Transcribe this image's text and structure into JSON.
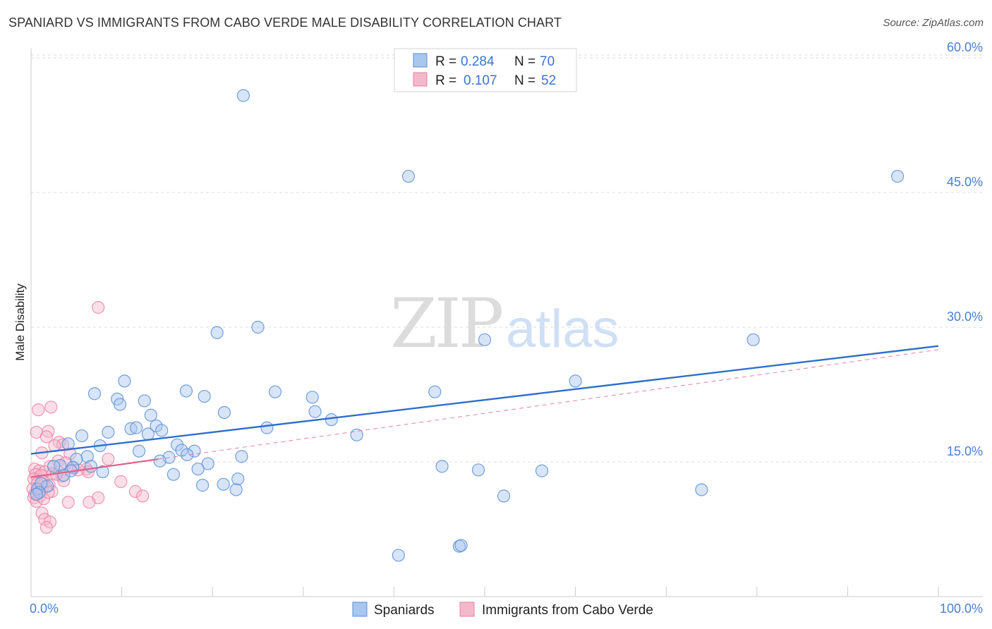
{
  "title": "SPANIARD VS IMMIGRANTS FROM CABO VERDE MALE DISABILITY CORRELATION CHART",
  "source": "Source: ZipAtlas.com",
  "watermark": {
    "zip": "ZIP",
    "atlas": "atlas"
  },
  "colors": {
    "blue_fill": "#a9c6ef",
    "blue_stroke": "#5b8fd6",
    "blue_line": "#2f6fcc",
    "pink_fill": "#f5b8cb",
    "pink_stroke": "#e87fa0",
    "pink_line": "#e0608a",
    "tick_text": "#4a7fd0",
    "grid": "#dddddd"
  },
  "legend_top": {
    "rows": [
      {
        "r_label": "R =",
        "r_value": "0.284",
        "n_label": "N =",
        "n_value": "70"
      },
      {
        "r_label": "R =",
        "r_value": "0.107",
        "n_label": "N =",
        "n_value": "52"
      }
    ]
  },
  "legend_bottom": [
    "Spaniards",
    "Immigrants from Cabo Verde"
  ],
  "chart_data": {
    "type": "scatter",
    "title": "SPANIARD VS IMMIGRANTS FROM CABO VERDE MALE DISABILITY CORRELATION CHART",
    "ylabel": "Male Disability",
    "xlabel": "",
    "xlim": [
      0,
      100
    ],
    "ylim": [
      0,
      64
    ],
    "x_tick_labels": [
      "0.0%",
      "100.0%"
    ],
    "y_ticks": [
      15,
      30,
      45,
      60
    ],
    "y_tick_labels": [
      "15.0%",
      "30.0%",
      "45.0%",
      "60.0%"
    ],
    "grid": "horizontal dashed",
    "legend_placement": "top-center",
    "series": [
      {
        "name": "Spaniards",
        "r": 0.284,
        "n": 70,
        "trend": {
          "x": [
            0,
            100
          ],
          "y": [
            15.9,
            27.9
          ]
        },
        "points": [
          [
            23.4,
            55.8
          ],
          [
            41.6,
            46.8
          ],
          [
            95.5,
            46.8
          ],
          [
            25.0,
            30.0
          ],
          [
            20.5,
            29.4
          ],
          [
            50.0,
            28.6
          ],
          [
            79.6,
            28.6
          ],
          [
            10.3,
            24.0
          ],
          [
            60.0,
            24.0
          ],
          [
            7.0,
            22.6
          ],
          [
            17.1,
            22.9
          ],
          [
            19.1,
            22.3
          ],
          [
            26.9,
            22.8
          ],
          [
            31.0,
            22.2
          ],
          [
            44.5,
            22.8
          ],
          [
            9.5,
            22.0
          ],
          [
            12.5,
            21.8
          ],
          [
            9.8,
            21.4
          ],
          [
            21.3,
            20.5
          ],
          [
            13.2,
            20.2
          ],
          [
            31.3,
            20.6
          ],
          [
            33.1,
            19.7
          ],
          [
            13.8,
            19.0
          ],
          [
            11.0,
            18.7
          ],
          [
            11.6,
            18.8
          ],
          [
            8.5,
            18.3
          ],
          [
            14.4,
            18.5
          ],
          [
            26.0,
            18.8
          ],
          [
            35.9,
            18.0
          ],
          [
            12.9,
            18.1
          ],
          [
            5.6,
            17.9
          ],
          [
            4.1,
            17.0
          ],
          [
            7.6,
            16.8
          ],
          [
            16.1,
            16.9
          ],
          [
            16.6,
            16.3
          ],
          [
            18.0,
            16.2
          ],
          [
            11.9,
            16.2
          ],
          [
            17.2,
            15.8
          ],
          [
            23.2,
            15.6
          ],
          [
            15.2,
            15.5
          ],
          [
            14.2,
            15.1
          ],
          [
            6.2,
            15.6
          ],
          [
            5.0,
            15.3
          ],
          [
            3.2,
            14.6
          ],
          [
            4.6,
            14.4
          ],
          [
            2.5,
            14.5
          ],
          [
            6.6,
            14.5
          ],
          [
            19.5,
            14.8
          ],
          [
            15.7,
            13.6
          ],
          [
            7.9,
            13.9
          ],
          [
            4.4,
            14.0
          ],
          [
            18.4,
            14.2
          ],
          [
            45.3,
            14.5
          ],
          [
            49.3,
            14.1
          ],
          [
            56.3,
            14.0
          ],
          [
            3.6,
            13.5
          ],
          [
            22.8,
            13.1
          ],
          [
            0.7,
            12.0
          ],
          [
            1.8,
            12.3
          ],
          [
            1.1,
            12.6
          ],
          [
            0.9,
            11.6
          ],
          [
            0.6,
            11.4
          ],
          [
            18.9,
            12.4
          ],
          [
            21.2,
            12.5
          ],
          [
            22.6,
            11.9
          ],
          [
            73.9,
            11.9
          ],
          [
            52.1,
            11.2
          ],
          [
            40.5,
            4.6
          ],
          [
            47.2,
            5.6
          ],
          [
            47.4,
            5.7
          ]
        ]
      },
      {
        "name": "Immigrants from Cabo Verde",
        "r": 0.107,
        "n": 52,
        "trend": {
          "x": [
            0,
            14
          ],
          "y": [
            13.3,
            15.3
          ]
        },
        "trend_extended": {
          "x": [
            14,
            100
          ],
          "y": [
            15.3,
            27.5
          ]
        },
        "points": [
          [
            7.4,
            32.2
          ],
          [
            0.8,
            20.8
          ],
          [
            2.2,
            21.1
          ],
          [
            0.6,
            18.3
          ],
          [
            1.9,
            18.4
          ],
          [
            1.7,
            17.8
          ],
          [
            3.1,
            17.2
          ],
          [
            3.5,
            16.9
          ],
          [
            2.6,
            16.8
          ],
          [
            1.2,
            16.0
          ],
          [
            4.3,
            15.9
          ],
          [
            8.5,
            15.3
          ],
          [
            3.0,
            15.1
          ],
          [
            3.8,
            14.9
          ],
          [
            4.7,
            14.3
          ],
          [
            2.1,
            14.5
          ],
          [
            0.4,
            14.2
          ],
          [
            0.9,
            14.0
          ],
          [
            1.5,
            13.9
          ],
          [
            2.4,
            13.7
          ],
          [
            0.5,
            13.6
          ],
          [
            1.1,
            13.5
          ],
          [
            3.4,
            13.4
          ],
          [
            6.1,
            14.2
          ],
          [
            6.3,
            13.9
          ],
          [
            0.3,
            13.1
          ],
          [
            1.3,
            12.8
          ],
          [
            0.7,
            12.6
          ],
          [
            2.0,
            12.4
          ],
          [
            3.6,
            12.9
          ],
          [
            0.2,
            12.0
          ],
          [
            0.8,
            11.9
          ],
          [
            1.6,
            12.2
          ],
          [
            2.3,
            11.7
          ],
          [
            0.4,
            11.4
          ],
          [
            1.0,
            11.2
          ],
          [
            0.3,
            11.0
          ],
          [
            0.6,
            10.6
          ],
          [
            1.4,
            10.9
          ],
          [
            9.9,
            12.8
          ],
          [
            11.5,
            11.7
          ],
          [
            12.3,
            11.2
          ],
          [
            7.4,
            11.0
          ],
          [
            6.4,
            10.5
          ],
          [
            4.1,
            10.5
          ],
          [
            1.2,
            9.3
          ],
          [
            1.5,
            8.6
          ],
          [
            2.1,
            8.3
          ],
          [
            1.7,
            7.7
          ],
          [
            1.9,
            11.6
          ],
          [
            2.8,
            13.6
          ],
          [
            5.2,
            14.1
          ]
        ]
      }
    ]
  }
}
